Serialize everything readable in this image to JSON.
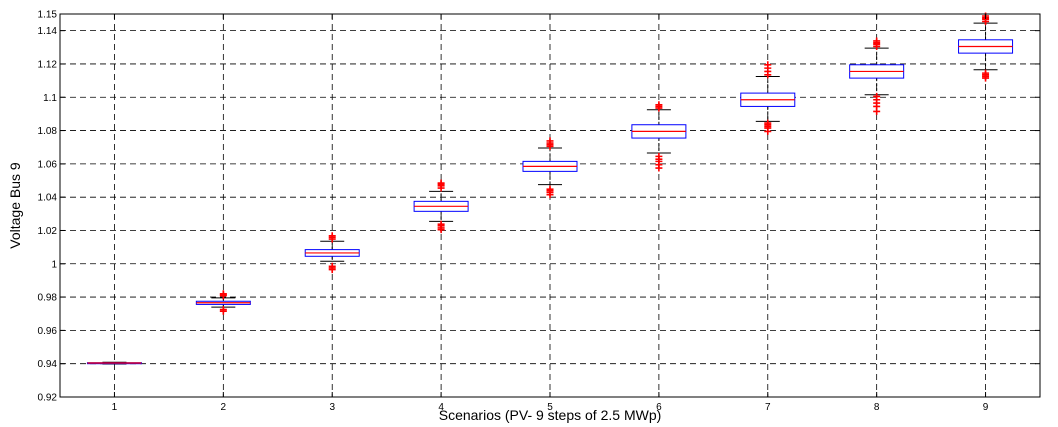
{
  "chart_data": {
    "type": "box",
    "title": "",
    "xlabel": "Scenarios (PV- 9 steps of 2.5 MWp)",
    "ylabel": "Voltage Bus 9",
    "categories": [
      "1",
      "2",
      "3",
      "4",
      "5",
      "6",
      "7",
      "8",
      "9"
    ],
    "ylim": [
      0.92,
      1.15
    ],
    "yticks": [
      "0.92",
      "0.94",
      "0.96",
      "0.98",
      "1",
      "1.02",
      "1.04",
      "1.06",
      "1.08",
      "1.1",
      "1.12",
      "1.14",
      "1.15"
    ],
    "ytick_values": [
      0.92,
      0.94,
      0.96,
      0.98,
      1.0,
      1.02,
      1.04,
      1.06,
      1.08,
      1.1,
      1.12,
      1.14,
      1.15
    ],
    "grid": true,
    "boxes": [
      {
        "category": "1",
        "whisker_low": 0.9398,
        "q1": 0.9402,
        "median": 0.9404,
        "q3": 0.9406,
        "whisker_high": 0.9409,
        "outliers": []
      },
      {
        "category": "2",
        "whisker_low": 0.974,
        "q1": 0.9756,
        "median": 0.9766,
        "q3": 0.9775,
        "whisker_high": 0.9795,
        "outliers": [
          0.9715,
          0.9725,
          0.9808,
          0.9815,
          0.982
        ]
      },
      {
        "category": "3",
        "whisker_low": 1.0015,
        "q1": 1.0045,
        "median": 1.0065,
        "q3": 1.0085,
        "whisker_high": 1.0135,
        "outliers": [
          0.9965,
          0.9975,
          0.9985,
          1.0148,
          1.0158,
          1.0168
        ]
      },
      {
        "category": "4",
        "whisker_low": 1.0255,
        "q1": 1.0315,
        "median": 1.0345,
        "q3": 1.0375,
        "whisker_high": 1.0435,
        "outliers": [
          1.0205,
          1.0215,
          1.0228,
          1.0238,
          1.0455,
          1.0468,
          1.0478,
          1.0485
        ]
      },
      {
        "category": "5",
        "whisker_low": 1.0475,
        "q1": 1.0555,
        "median": 1.0585,
        "q3": 1.0615,
        "whisker_high": 1.0695,
        "outliers": [
          1.0415,
          1.0428,
          1.0438,
          1.0448,
          1.0705,
          1.0715,
          1.0725,
          1.0738
        ]
      },
      {
        "category": "6",
        "whisker_low": 1.0665,
        "q1": 1.0755,
        "median": 1.0795,
        "q3": 1.0835,
        "whisker_high": 1.0925,
        "outliers": [
          1.0575,
          1.0595,
          1.0615,
          1.0628,
          1.0645,
          1.0935,
          1.0945,
          1.0955
        ]
      },
      {
        "category": "7",
        "whisker_low": 1.0855,
        "q1": 1.0945,
        "median": 1.0985,
        "q3": 1.1025,
        "whisker_high": 1.1125,
        "outliers": [
          1.0795,
          1.0815,
          1.0825,
          1.0835,
          1.0845,
          1.1135,
          1.1155,
          1.1175,
          1.1195
        ]
      },
      {
        "category": "8",
        "whisker_low": 1.1015,
        "q1": 1.1115,
        "median": 1.1155,
        "q3": 1.1195,
        "whisker_high": 1.1295,
        "outliers": [
          1.0915,
          1.0945,
          1.0965,
          1.0985,
          1.1005,
          1.1305,
          1.1318,
          1.1328,
          1.1338
        ]
      },
      {
        "category": "9",
        "whisker_low": 1.1165,
        "q1": 1.1265,
        "median": 1.1305,
        "q3": 1.1345,
        "whisker_high": 1.1445,
        "outliers": [
          1.1115,
          1.1125,
          1.1135,
          1.1145,
          1.1455,
          1.1468,
          1.1478,
          1.1488
        ]
      }
    ]
  },
  "colors": {
    "box": "#0000ff",
    "median": "#ff0000",
    "outlier": "#ff0000",
    "whisker": "#000000",
    "grid": "#000000"
  }
}
